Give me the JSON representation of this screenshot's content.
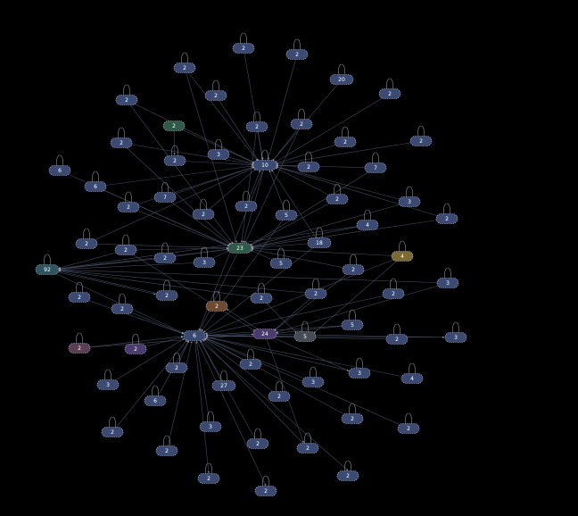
{
  "graph": {
    "title": "",
    "colors": {
      "default": "#3b4a72",
      "green": "#2f5a4a",
      "teal": "#2f5560",
      "olive": "#7a6a34",
      "brown": "#6e4a30",
      "purple": "#4a3c6e",
      "mauve": "#5a3f55",
      "slate": "#464b56",
      "edge": "#4f5870"
    },
    "nodes": [
      {
        "id": "n1",
        "label": "2",
        "color": "default"
      },
      {
        "id": "n2",
        "label": "2",
        "color": "default"
      },
      {
        "id": "n3",
        "label": "2",
        "color": "default"
      },
      {
        "id": "n4",
        "label": "20",
        "color": "default"
      },
      {
        "id": "n5",
        "label": "2",
        "color": "default"
      },
      {
        "id": "n6",
        "label": "2",
        "color": "default"
      },
      {
        "id": "n7",
        "label": "2",
        "color": "default"
      },
      {
        "id": "n8",
        "label": "2",
        "color": "green"
      },
      {
        "id": "n9",
        "label": "2",
        "color": "default"
      },
      {
        "id": "n10",
        "label": "2",
        "color": "default"
      },
      {
        "id": "n11",
        "label": "2",
        "color": "default"
      },
      {
        "id": "n12",
        "label": "2",
        "color": "default"
      },
      {
        "id": "n13",
        "label": "3",
        "color": "default"
      },
      {
        "id": "n14",
        "label": "10",
        "color": "default"
      },
      {
        "id": "n15",
        "label": "2",
        "color": "default"
      },
      {
        "id": "n16",
        "label": "2",
        "color": "default"
      },
      {
        "id": "n17",
        "label": "6",
        "color": "default"
      },
      {
        "id": "n18",
        "label": "2",
        "color": "default"
      },
      {
        "id": "n19",
        "label": "7",
        "color": "default"
      },
      {
        "id": "n20",
        "label": "6",
        "color": "default"
      },
      {
        "id": "n21",
        "label": "7",
        "color": "default"
      },
      {
        "id": "n22",
        "label": "2",
        "color": "default"
      },
      {
        "id": "n23",
        "label": "2",
        "color": "default"
      },
      {
        "id": "n24",
        "label": "2",
        "color": "default"
      },
      {
        "id": "n25",
        "label": "2",
        "color": "default"
      },
      {
        "id": "n26",
        "label": "3",
        "color": "default"
      },
      {
        "id": "n27",
        "label": "5",
        "color": "default"
      },
      {
        "id": "n28",
        "label": "2",
        "color": "default"
      },
      {
        "id": "n29",
        "label": "4",
        "color": "default"
      },
      {
        "id": "n30",
        "label": "23",
        "color": "green"
      },
      {
        "id": "n31",
        "label": "18",
        "color": "default"
      },
      {
        "id": "n32",
        "label": "2",
        "color": "default"
      },
      {
        "id": "n33",
        "label": "2",
        "color": "default"
      },
      {
        "id": "n34",
        "label": "2",
        "color": "default"
      },
      {
        "id": "n35",
        "label": "4",
        "color": "olive"
      },
      {
        "id": "n36",
        "label": "3",
        "color": "default"
      },
      {
        "id": "n37",
        "label": "5",
        "color": "default"
      },
      {
        "id": "n38",
        "label": "2",
        "color": "default"
      },
      {
        "id": "n39",
        "label": "92",
        "color": "teal"
      },
      {
        "id": "n40",
        "label": "3",
        "color": "default"
      },
      {
        "id": "n41",
        "label": "2",
        "color": "default"
      },
      {
        "id": "n42",
        "label": "2",
        "color": "default"
      },
      {
        "id": "n43",
        "label": "2",
        "color": "default"
      },
      {
        "id": "n44",
        "label": "2",
        "color": "default"
      },
      {
        "id": "n45",
        "label": "2",
        "color": "default"
      },
      {
        "id": "n46",
        "label": "2",
        "color": "default"
      },
      {
        "id": "n47",
        "label": "2",
        "color": "brown"
      },
      {
        "id": "n48",
        "label": "5",
        "color": "default"
      },
      {
        "id": "n49",
        "label": "24",
        "color": "purple"
      },
      {
        "id": "n50",
        "label": "6",
        "color": "default"
      },
      {
        "id": "n51",
        "label": "5",
        "color": "slate"
      },
      {
        "id": "n52",
        "label": "2",
        "color": "default"
      },
      {
        "id": "n53",
        "label": "3",
        "color": "default"
      },
      {
        "id": "n54",
        "label": "2",
        "color": "mauve"
      },
      {
        "id": "n55",
        "label": "2",
        "color": "purple"
      },
      {
        "id": "n56",
        "label": "2",
        "color": "default"
      },
      {
        "id": "n57",
        "label": "2",
        "color": "default"
      },
      {
        "id": "n58",
        "label": "3",
        "color": "default"
      },
      {
        "id": "n59",
        "label": "4",
        "color": "default"
      },
      {
        "id": "n60",
        "label": "3",
        "color": "default"
      },
      {
        "id": "n61",
        "label": "27",
        "color": "default"
      },
      {
        "id": "n62",
        "label": "3",
        "color": "default"
      },
      {
        "id": "n63",
        "label": "2",
        "color": "default"
      },
      {
        "id": "n64",
        "label": "6",
        "color": "default"
      },
      {
        "id": "n65",
        "label": "2",
        "color": "default"
      },
      {
        "id": "n66",
        "label": "2",
        "color": "default"
      },
      {
        "id": "n67",
        "label": "3",
        "color": "default"
      },
      {
        "id": "n68",
        "label": "2",
        "color": "default"
      },
      {
        "id": "n69",
        "label": "2",
        "color": "default"
      },
      {
        "id": "n70",
        "label": "2",
        "color": "default"
      },
      {
        "id": "n71",
        "label": "2",
        "color": "default"
      }
    ],
    "edges": [
      [
        "n1",
        "n14"
      ],
      [
        "n2",
        "n14"
      ],
      [
        "n3",
        "n14"
      ],
      [
        "n4",
        "n14"
      ],
      [
        "n5",
        "n14"
      ],
      [
        "n6",
        "n14"
      ],
      [
        "n7",
        "n14"
      ],
      [
        "n8",
        "n14"
      ],
      [
        "n9",
        "n14"
      ],
      [
        "n10",
        "n14"
      ],
      [
        "n11",
        "n14"
      ],
      [
        "n12",
        "n14"
      ],
      [
        "n13",
        "n14"
      ],
      [
        "n15",
        "n14"
      ],
      [
        "n16",
        "n14"
      ],
      [
        "n18",
        "n14"
      ],
      [
        "n19",
        "n14"
      ],
      [
        "n20",
        "n14"
      ],
      [
        "n21",
        "n14"
      ],
      [
        "n22",
        "n14"
      ],
      [
        "n23",
        "n14"
      ],
      [
        "n24",
        "n14"
      ],
      [
        "n25",
        "n14"
      ],
      [
        "n26",
        "n14"
      ],
      [
        "n27",
        "n14"
      ],
      [
        "n28",
        "n14"
      ],
      [
        "n31",
        "n14"
      ],
      [
        "n32",
        "n14"
      ],
      [
        "n8",
        "n9"
      ],
      [
        "n10",
        "n30"
      ],
      [
        "n17",
        "n30"
      ],
      [
        "n19",
        "n30"
      ],
      [
        "n20",
        "n30"
      ],
      [
        "n21",
        "n30"
      ],
      [
        "n22",
        "n30"
      ],
      [
        "n24",
        "n30"
      ],
      [
        "n26",
        "n30"
      ],
      [
        "n28",
        "n30"
      ],
      [
        "n29",
        "n30"
      ],
      [
        "n31",
        "n30"
      ],
      [
        "n32",
        "n30"
      ],
      [
        "n33",
        "n30"
      ],
      [
        "n34",
        "n30"
      ],
      [
        "n35",
        "n30"
      ],
      [
        "n36",
        "n30"
      ],
      [
        "n37",
        "n30"
      ],
      [
        "n38",
        "n30"
      ],
      [
        "n14",
        "n30"
      ],
      [
        "n3",
        "n30"
      ],
      [
        "n12",
        "n30"
      ],
      [
        "n7",
        "n30"
      ],
      [
        "n11",
        "n30"
      ],
      [
        "n30",
        "n39"
      ],
      [
        "n33",
        "n39"
      ],
      [
        "n36",
        "n39"
      ],
      [
        "n40",
        "n39"
      ],
      [
        "n43",
        "n39"
      ],
      [
        "n29",
        "n39"
      ],
      [
        "n34",
        "n39"
      ],
      [
        "n44",
        "n39"
      ],
      [
        "n41",
        "n39"
      ],
      [
        "n39",
        "n50"
      ],
      [
        "n30",
        "n50"
      ],
      [
        "n14",
        "n50"
      ],
      [
        "n27",
        "n50"
      ],
      [
        "n31",
        "n50"
      ],
      [
        "n35",
        "n50"
      ],
      [
        "n42",
        "n50"
      ],
      [
        "n45",
        "n50"
      ],
      [
        "n46",
        "n50"
      ],
      [
        "n49",
        "n50"
      ],
      [
        "n51",
        "n50"
      ],
      [
        "n52",
        "n50"
      ],
      [
        "n53",
        "n50"
      ],
      [
        "n54",
        "n50"
      ],
      [
        "n55",
        "n50"
      ],
      [
        "n56",
        "n50"
      ],
      [
        "n57",
        "n50"
      ],
      [
        "n58",
        "n50"
      ],
      [
        "n59",
        "n50"
      ],
      [
        "n60",
        "n50"
      ],
      [
        "n61",
        "n50"
      ],
      [
        "n62",
        "n50"
      ],
      [
        "n63",
        "n50"
      ],
      [
        "n64",
        "n50"
      ],
      [
        "n65",
        "n50"
      ],
      [
        "n66",
        "n50"
      ],
      [
        "n67",
        "n50"
      ],
      [
        "n68",
        "n50"
      ],
      [
        "n69",
        "n50"
      ],
      [
        "n70",
        "n50"
      ],
      [
        "n71",
        "n50"
      ],
      [
        "n48",
        "n50"
      ],
      [
        "n49",
        "n47"
      ],
      [
        "n39",
        "n43"
      ],
      [
        "n48",
        "n49"
      ],
      [
        "n49",
        "n53"
      ],
      [
        "n49",
        "n58"
      ],
      [
        "n49",
        "n70"
      ],
      [
        "n41",
        "n51"
      ],
      [
        "n35",
        "n51"
      ],
      [
        "n33",
        "n49"
      ],
      [
        "n40",
        "n49"
      ],
      [
        "n38",
        "n49"
      ],
      [
        "n44",
        "n49"
      ],
      [
        "n54",
        "n49"
      ]
    ],
    "loops": [
      "n1",
      "n2",
      "n3",
      "n4",
      "n5",
      "n6",
      "n7",
      "n9",
      "n10",
      "n11",
      "n12",
      "n13",
      "n14",
      "n15",
      "n16",
      "n17",
      "n18",
      "n19",
      "n20",
      "n21",
      "n22",
      "n23",
      "n24",
      "n25",
      "n26",
      "n27",
      "n28",
      "n29",
      "n31",
      "n32",
      "n33",
      "n34",
      "n35",
      "n36",
      "n37",
      "n38",
      "n39",
      "n40",
      "n41",
      "n42",
      "n43",
      "n44",
      "n45",
      "n46",
      "n47",
      "n48",
      "n51",
      "n52",
      "n53",
      "n54",
      "n55",
      "n56",
      "n57",
      "n58",
      "n59",
      "n60",
      "n61",
      "n62",
      "n63",
      "n64",
      "n65",
      "n66",
      "n67",
      "n68",
      "n69",
      "n70",
      "n71"
    ]
  }
}
